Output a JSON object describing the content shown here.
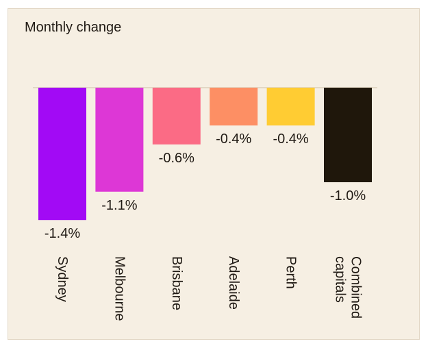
{
  "chart_data": {
    "type": "bar",
    "title": "Monthly change",
    "categories": [
      "Sydney",
      "Melbourne",
      "Brisbane",
      "Adelaide",
      "Perth",
      "Combined capitals"
    ],
    "values": [
      -1.4,
      -1.1,
      -0.6,
      -0.4,
      -0.4,
      -1.0
    ],
    "data_labels": [
      "-1.4%",
      "-1.1%",
      "-0.6%",
      "-0.4%",
      "-0.4%",
      "-1.0%"
    ],
    "category_label_lines": [
      [
        "Sydney"
      ],
      [
        "Melbourne"
      ],
      [
        "Brisbane"
      ],
      [
        "Adelaide"
      ],
      [
        "Perth"
      ],
      [
        "Combined",
        "capitals"
      ]
    ],
    "colors": [
      "#a20af5",
      "#dd37d6",
      "#fb6b85",
      "#fd8f64",
      "#ffcc33",
      "#1f170b"
    ],
    "ylim": [
      -1.4,
      0
    ],
    "xlabel": "",
    "ylabel": "",
    "grid": false,
    "legend": "none"
  },
  "colors": {
    "background": "#f6efe3",
    "text": "#201a14",
    "baseline": "#e2d7c5"
  }
}
